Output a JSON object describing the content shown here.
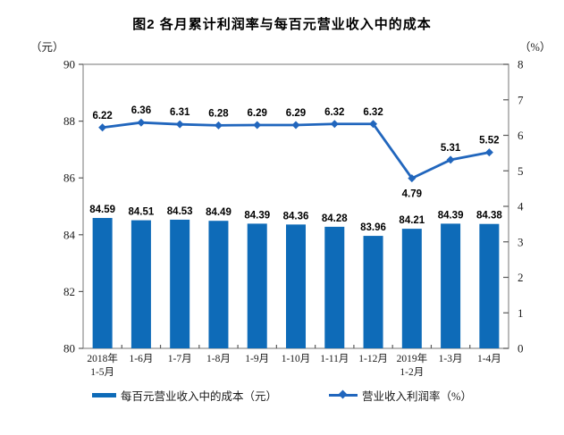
{
  "chart_data": {
    "type": "bar+line",
    "title": "图2  各月累计利润率与每百元营业收入中的成本",
    "categories": [
      "2018年\n1-5月",
      "1-6月",
      "1-7月",
      "1-8月",
      "1-9月",
      "1-10月",
      "1-11月",
      "1-12月",
      "2019年\n1-2月",
      "1-3月",
      "1-4月"
    ],
    "series": [
      {
        "name": "每百元营业收入中的成本（元）",
        "type": "bar",
        "axis": "left",
        "values": [
          84.59,
          84.51,
          84.53,
          84.49,
          84.39,
          84.36,
          84.28,
          83.96,
          84.21,
          84.39,
          84.38
        ],
        "color": "#0e6bb8"
      },
      {
        "name": "营业收入利润率（%）",
        "type": "line",
        "axis": "right",
        "values": [
          6.22,
          6.36,
          6.31,
          6.28,
          6.29,
          6.29,
          6.32,
          6.32,
          4.79,
          5.31,
          5.52
        ],
        "color": "#2166bd"
      }
    ],
    "left_axis": {
      "unit": "（元）",
      "min": 80,
      "max": 90,
      "major_step": 2
    },
    "right_axis": {
      "unit": "（%）",
      "min": 0,
      "max": 8,
      "major_step": 1
    },
    "legend_position": "bottom",
    "grid": false,
    "colors": {
      "border": "#8c8c8c",
      "tick": "#595959",
      "label_text": "#000000",
      "axis_text": "#1a1a1a"
    }
  }
}
